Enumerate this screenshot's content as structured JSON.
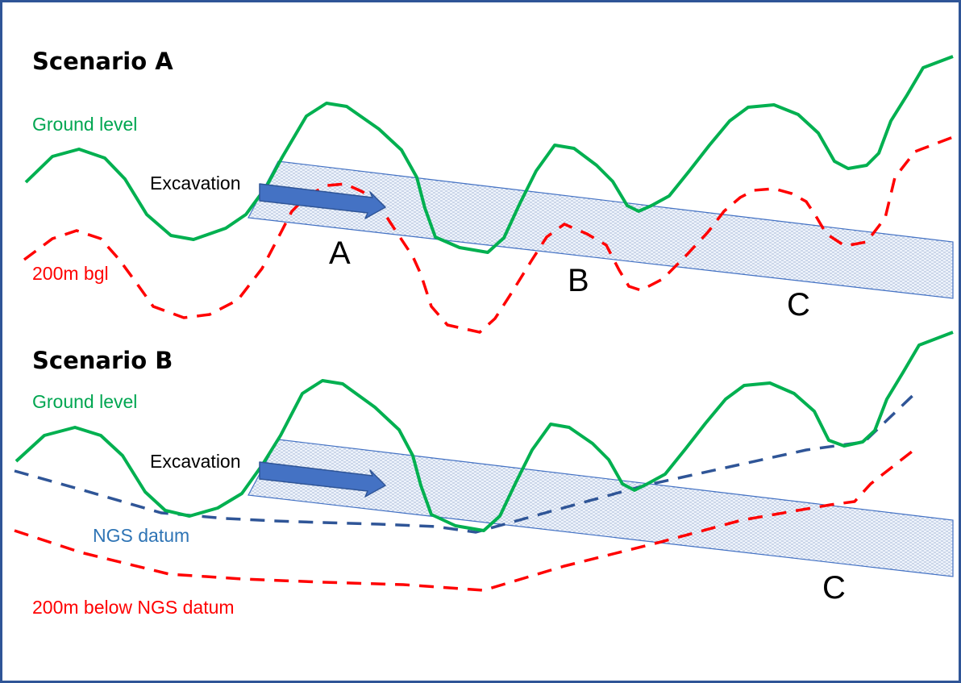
{
  "scenario_a": {
    "title": "Scenario A",
    "ground_label": "Ground level",
    "depth_label": "200m bgl",
    "excavation_label": "Excavation",
    "point_labels": [
      "A",
      "B",
      "C"
    ]
  },
  "scenario_b": {
    "title": "Scenario B",
    "ground_label": "Ground level",
    "datum_label": "NGS datum",
    "depth_label": "200m below NGS datum",
    "excavation_label": "Excavation",
    "point_labels": [
      "C"
    ]
  },
  "colors": {
    "ground": "#00b050",
    "depth": "#ff0000",
    "datum": "#2f5597",
    "band_stroke": "#4472c4",
    "arrow": "#4472c4",
    "frame": "#2f5597"
  }
}
